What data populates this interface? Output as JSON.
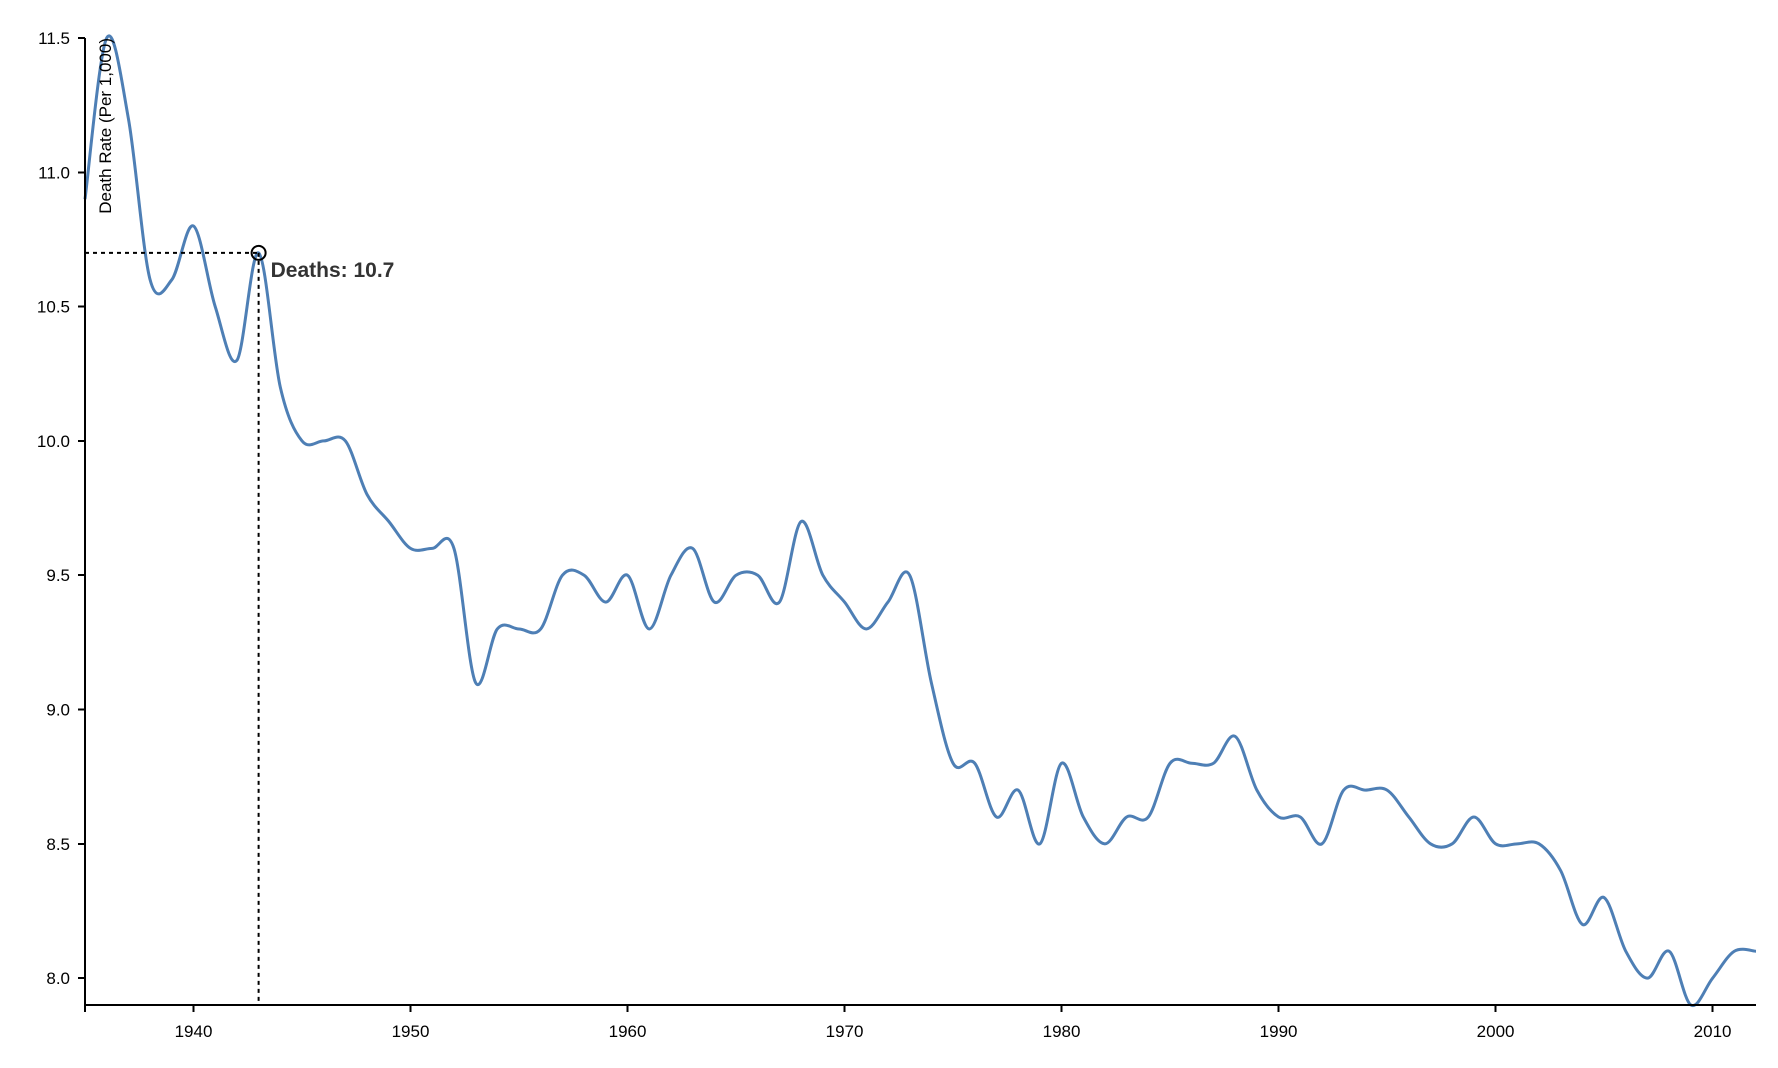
{
  "chart_data": {
    "type": "line",
    "title": "",
    "xlabel": "",
    "ylabel": "Death Rate (Per 1,000)",
    "xlim": [
      1935,
      2012
    ],
    "ylim": [
      7.9,
      11.5
    ],
    "x_ticks": [
      1940,
      1950,
      1960,
      1970,
      1980,
      1990,
      2000,
      2010
    ],
    "y_ticks": [
      "8.0",
      "8.5",
      "9.0",
      "9.5",
      "10.0",
      "10.5",
      "11.0",
      "11.5"
    ],
    "grid": false,
    "curve": "smooth",
    "colors": {
      "line": "#4e7fb5"
    },
    "series": [
      {
        "x": [
          1935,
          1936,
          1937,
          1938,
          1939,
          1940,
          1941,
          1942,
          1943,
          1944,
          1945,
          1946,
          1947,
          1948,
          1949,
          1950,
          1951,
          1952,
          1953,
          1954,
          1955,
          1956,
          1957,
          1958,
          1959,
          1960,
          1961,
          1962,
          1963,
          1964,
          1965,
          1966,
          1967,
          1968,
          1969,
          1970,
          1971,
          1972,
          1973,
          1974,
          1975,
          1976,
          1977,
          1978,
          1979,
          1980,
          1981,
          1982,
          1983,
          1984,
          1985,
          1986,
          1987,
          1988,
          1989,
          1990,
          1991,
          1992,
          1993,
          1994,
          1995,
          1996,
          1997,
          1998,
          1999,
          2000,
          2001,
          2002,
          2003,
          2004,
          2005,
          2006,
          2007,
          2008,
          2009,
          2010,
          2011,
          2012
        ],
        "values": [
          10.9,
          11.5,
          11.2,
          10.6,
          10.6,
          10.8,
          10.5,
          10.3,
          10.7,
          10.2,
          10.0,
          10.0,
          10.0,
          9.8,
          9.7,
          9.6,
          9.6,
          9.6,
          9.1,
          9.3,
          9.3,
          9.3,
          9.5,
          9.5,
          9.4,
          9.5,
          9.3,
          9.5,
          9.6,
          9.4,
          9.5,
          9.5,
          9.4,
          9.7,
          9.5,
          9.4,
          9.3,
          9.4,
          9.5,
          9.1,
          8.8,
          8.8,
          8.6,
          8.7,
          8.5,
          8.8,
          8.6,
          8.5,
          8.6,
          8.6,
          8.8,
          8.8,
          8.8,
          8.9,
          8.7,
          8.6,
          8.6,
          8.5,
          8.7,
          8.7,
          8.7,
          8.6,
          8.5,
          8.5,
          8.6,
          8.5,
          8.5,
          8.5,
          8.4,
          8.2,
          8.3,
          8.1,
          8.0,
          8.1,
          7.9,
          8.0,
          8.1,
          8.1
        ]
      }
    ],
    "focus": {
      "x": 1943,
      "y": 10.7,
      "label": "Deaths: 10.7"
    }
  }
}
